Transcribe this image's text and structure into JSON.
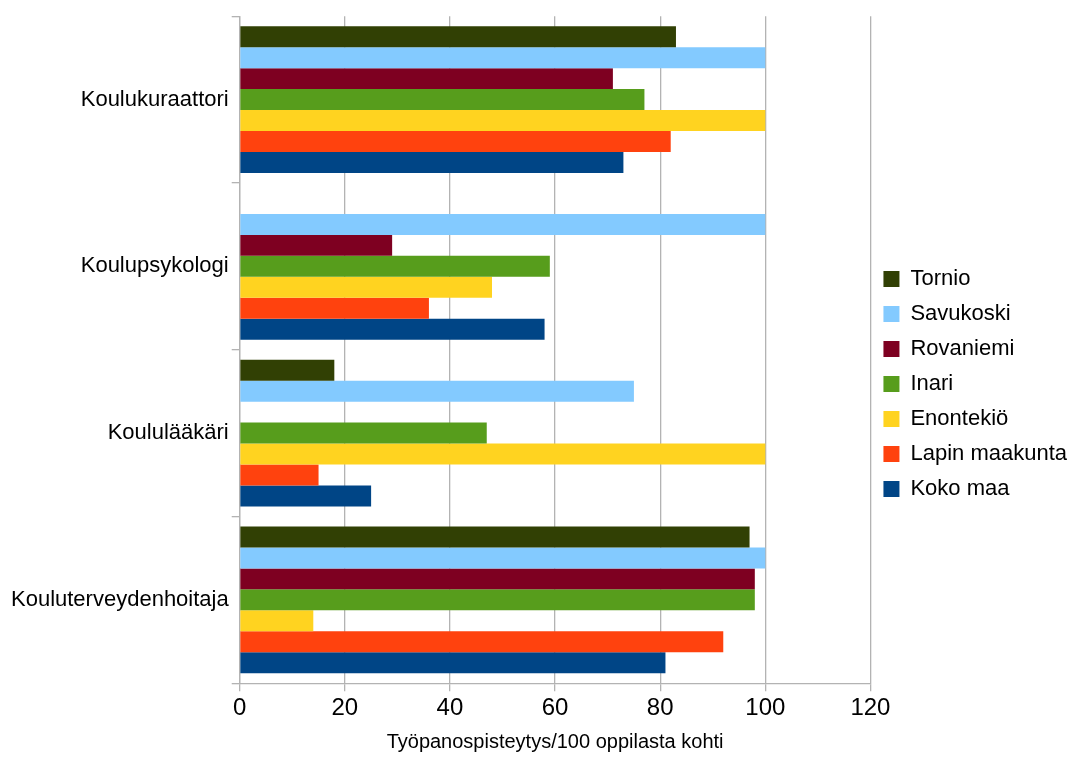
{
  "chart_data": {
    "type": "bar",
    "orientation": "horizontal",
    "xlabel": "Työpanospisteytys/100 oppilasta kohti",
    "categories": [
      "Koulukuraattori",
      "Koulupsykologi",
      "Koululääkäri",
      "Kouluterveydenhoitaja"
    ],
    "series": [
      {
        "name": "Tornio",
        "color": "#314004",
        "values": [
          83,
          null,
          18,
          97
        ]
      },
      {
        "name": "Savukoski",
        "color": "#83caff",
        "values": [
          100,
          100,
          75,
          100
        ]
      },
      {
        "name": "Rovaniemi",
        "color": "#7e0021",
        "values": [
          71,
          29,
          null,
          98
        ]
      },
      {
        "name": "Inari",
        "color": "#579d1c",
        "values": [
          77,
          59,
          47,
          98
        ]
      },
      {
        "name": "Enontekiö",
        "color": "#ffd320",
        "values": [
          100,
          48,
          100,
          14
        ]
      },
      {
        "name": "Lapin maakunta",
        "color": "#ff420e",
        "values": [
          82,
          36,
          15,
          92
        ]
      },
      {
        "name": "Koko maa",
        "color": "#004586",
        "values": [
          73,
          58,
          25,
          81
        ]
      }
    ],
    "xlim": [
      0,
      120
    ],
    "xticks": [
      0,
      20,
      40,
      60,
      80,
      100,
      120
    ],
    "grid": "x",
    "legend": "right"
  }
}
